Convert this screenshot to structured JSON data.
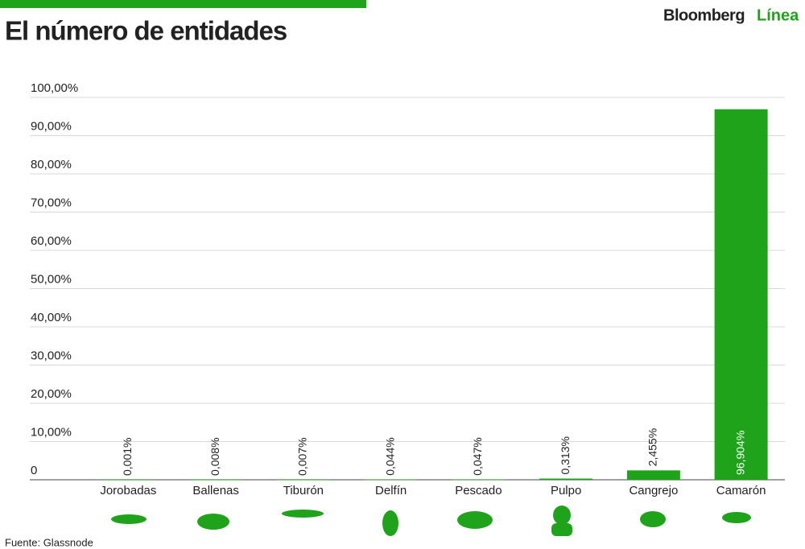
{
  "brand": {
    "name": "Bloomberg",
    "sub": "Línea"
  },
  "chart_data": {
    "type": "bar",
    "title": "El número de entidades",
    "source": "Fuente: Glassnode",
    "categories": [
      "Jorobadas",
      "Ballenas",
      "Tiburón",
      "Delfín",
      "Pescado",
      "Pulpo",
      "Cangrejo",
      "Camarón"
    ],
    "values": [
      0.001,
      0.008,
      0.007,
      0.044,
      0.047,
      0.313,
      2.455,
      96.904
    ],
    "value_labels": [
      "0,001%",
      "0,008%",
      "0,007%",
      "0,044%",
      "0,047%",
      "0,313%",
      "2,455%",
      "96,904%"
    ],
    "color": "#1fa31a",
    "ylim": [
      0,
      100
    ],
    "yticks": [
      0,
      {
        "value": 10,
        "label": "10,00%"
      },
      {
        "value": 20,
        "label": "20,00%"
      },
      {
        "value": 30,
        "label": "30,00%"
      },
      {
        "value": 40,
        "label": "40,00%"
      },
      {
        "value": 50,
        "label": "50,00%"
      },
      {
        "value": 60,
        "label": "60,00%"
      },
      {
        "value": 70,
        "label": "70,00%"
      },
      {
        "value": 80,
        "label": "80,00%"
      },
      {
        "value": 90,
        "label": "90,00%"
      },
      {
        "value": 100,
        "label": "100,00%"
      }
    ],
    "grid": true
  }
}
